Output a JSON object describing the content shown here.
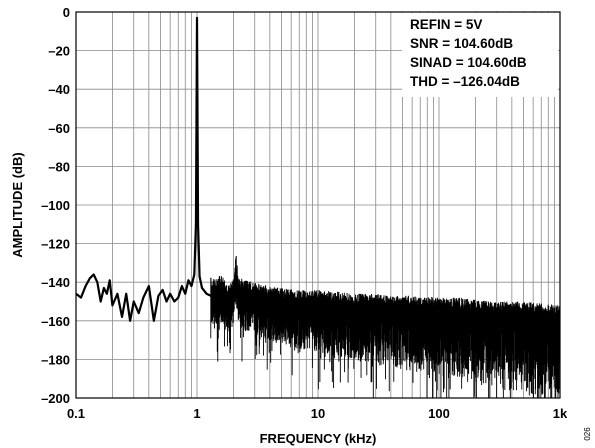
{
  "chart_data": {
    "type": "line",
    "xlabel": "FREQUENCY (kHz)",
    "ylabel": "AMPLITUDE (dB)",
    "x_scale": "log",
    "xlim": [
      0.1,
      1000
    ],
    "ylim": [
      -200,
      0
    ],
    "x_ticks": [
      {
        "value": 0.1,
        "label": "0.1"
      },
      {
        "value": 1,
        "label": "1"
      },
      {
        "value": 10,
        "label": "10"
      },
      {
        "value": 100,
        "label": "100"
      },
      {
        "value": 1000,
        "label": "1k"
      }
    ],
    "y_ticks": [
      {
        "value": 0,
        "label": "0"
      },
      {
        "value": -20,
        "label": "–20"
      },
      {
        "value": -40,
        "label": "–40"
      },
      {
        "value": -60,
        "label": "–60"
      },
      {
        "value": -80,
        "label": "–80"
      },
      {
        "value": -100,
        "label": "–100"
      },
      {
        "value": -120,
        "label": "–120"
      },
      {
        "value": -140,
        "label": "–140"
      },
      {
        "value": -160,
        "label": "–160"
      },
      {
        "value": -180,
        "label": "–180"
      },
      {
        "value": -200,
        "label": "–200"
      }
    ],
    "grid": true,
    "annotations": [
      "REFIN = 5V",
      "SNR = 104.60dB",
      "SINAD = 104.60dB",
      "THD = –126.04dB"
    ],
    "annotation_position": "top-right",
    "series": [
      {
        "x": [
          0.1,
          0.11,
          0.12,
          0.13,
          0.14,
          0.15,
          0.16,
          0.17,
          0.18,
          0.19,
          0.2,
          0.22,
          0.24,
          0.26,
          0.28,
          0.3,
          0.33,
          0.36,
          0.4,
          0.44,
          0.48,
          0.52,
          0.56,
          0.6,
          0.65,
          0.7,
          0.75,
          0.8,
          0.85,
          0.9,
          0.95,
          0.98,
          1.0,
          1.02,
          1.05,
          1.1,
          1.2,
          1.4,
          1.6,
          1.8,
          2.0,
          2.1,
          2.2,
          2.5,
          3,
          4,
          5,
          7,
          10,
          15,
          20,
          30,
          50,
          70,
          100,
          150,
          200,
          300,
          500,
          700,
          1000
        ],
        "y": [
          -146,
          -148,
          -142,
          -138,
          -136,
          -140,
          -150,
          -143,
          -146,
          -139,
          -152,
          -146,
          -158,
          -146,
          -160,
          -150,
          -156,
          -148,
          -142,
          -160,
          -147,
          -144,
          -150,
          -146,
          -150,
          -148,
          -142,
          -146,
          -139,
          -142,
          -136,
          -110,
          -3,
          -110,
          -137,
          -143,
          -146,
          -148,
          -146,
          -152,
          -148,
          -135,
          -147,
          -149,
          -150,
          -152,
          -153,
          -154,
          -154,
          -155,
          -156,
          -156,
          -157,
          -157,
          -158,
          -158,
          -159,
          -160,
          -160,
          -161,
          -162
        ]
      }
    ]
  },
  "figure_id": "026"
}
